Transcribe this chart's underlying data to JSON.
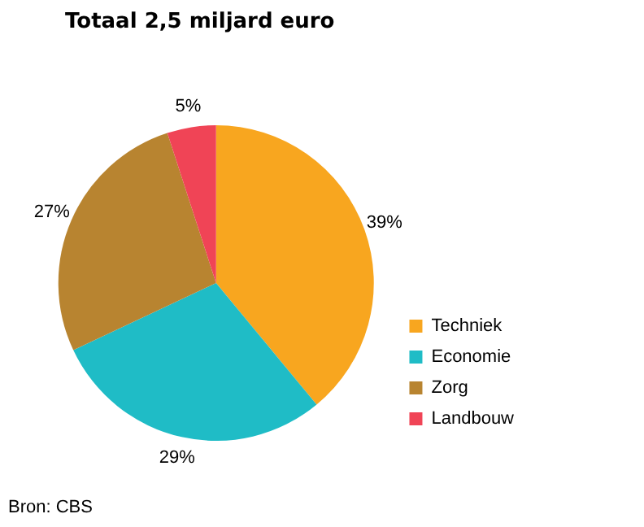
{
  "chart_data": {
    "type": "pie",
    "title": "Totaal 2,5 miljard euro",
    "categories": [
      "Techniek",
      "Economie",
      "Zorg",
      "Landbouw"
    ],
    "values": [
      39,
      29,
      27,
      5
    ],
    "colors": [
      "#f8a61f",
      "#1fbcc6",
      "#b88430",
      "#f04456"
    ],
    "value_labels": [
      "39%",
      "29%",
      "27%",
      "5%"
    ],
    "legend": "bottom right",
    "annotations": [
      "Bron: CBS"
    ]
  }
}
